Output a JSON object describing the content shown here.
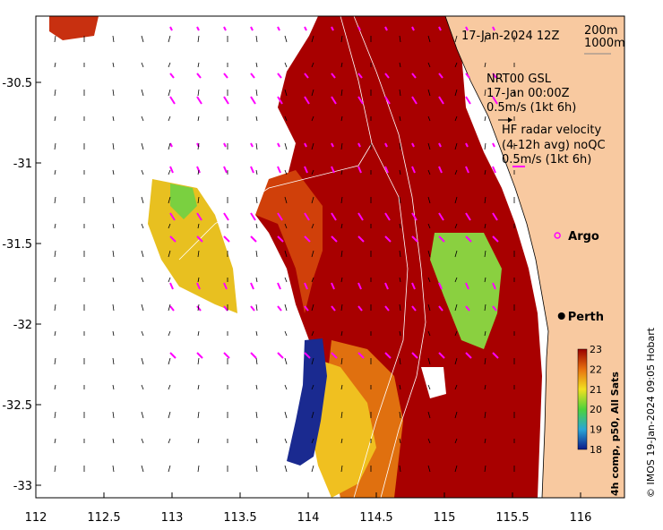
{
  "map": {
    "date": "17-Jan-2024 12Z",
    "contour_labels": [
      "200m",
      "1000m"
    ],
    "current_block": [
      "NRT00 GSL",
      "17-Jan 00:00Z",
      "0.5m/s (1kt 6h)"
    ],
    "radar_block": [
      "HF radar velocity",
      "(4-12h avg) noQC",
      "0.5m/s (1kt 6h)"
    ],
    "places": [
      {
        "name": "Argo",
        "lon": 115.83,
        "lat": -31.45
      },
      {
        "name": "Perth",
        "lon": 115.86,
        "lat": -31.95
      }
    ],
    "x_ticks": [
      "112",
      "112.5",
      "113",
      "113.5",
      "114",
      "114.5",
      "115",
      "115.5",
      "116"
    ],
    "y_ticks": [
      "-30.5",
      "-31",
      "-31.5",
      "-32",
      "-32.5",
      "-33"
    ],
    "colorbar": {
      "label": "4h comp, p50, All Sats",
      "ticks": [
        "18",
        "19",
        "20",
        "21",
        "22",
        "23"
      ],
      "range": [
        18,
        23
      ]
    },
    "credit": "© IMOS 19-Jan-2024 09:05 Hobart",
    "colors": {
      "land": "#f8c9a0",
      "warm": "#a80000",
      "mid": "#e86a10",
      "cool": "#2030a0",
      "gsl_arrow": "#ff00ff",
      "radar_arrow": "#ff00ff"
    }
  }
}
